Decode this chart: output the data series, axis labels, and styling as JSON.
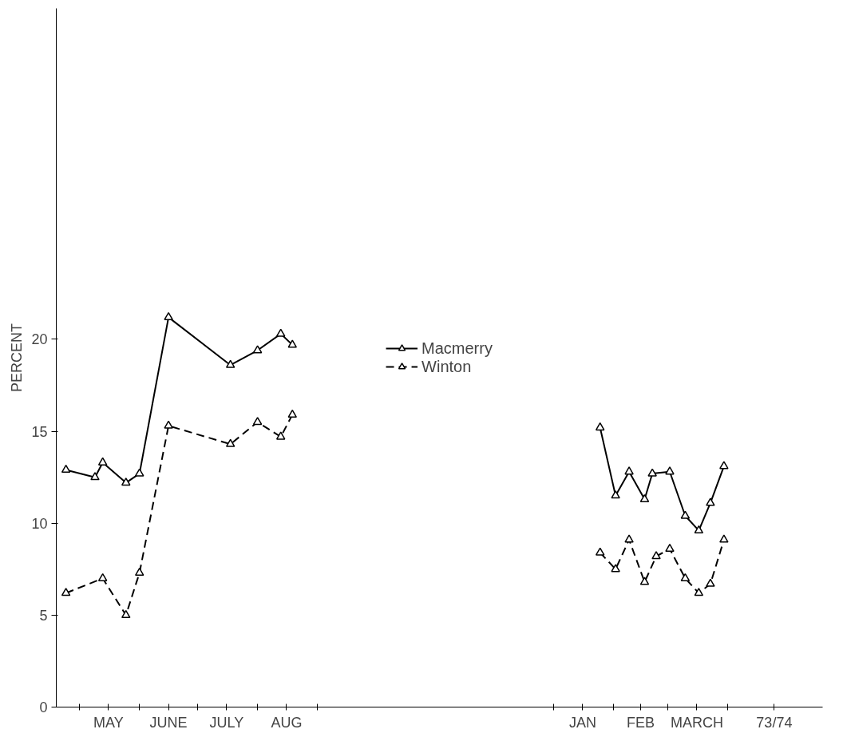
{
  "chart_data": {
    "type": "line",
    "ylabel": "PERCENT",
    "xlim": [
      "1973-04-19",
      "1974-05-20"
    ],
    "ylim": [
      0,
      38
    ],
    "yticks": [
      0,
      5,
      10,
      15,
      20
    ],
    "xticks": [
      {
        "value": "1973-05-01",
        "label": null
      },
      {
        "value": "1973-06-01",
        "label": null
      },
      {
        "value": "1973-07-01",
        "label": null
      },
      {
        "value": "1973-08-01",
        "label": null
      },
      {
        "value": "1973-09-01",
        "label": null
      },
      {
        "value": "1974-01-01",
        "label": null
      },
      {
        "value": "1974-02-01",
        "label": null
      },
      {
        "value": "1974-03-01",
        "label": null
      },
      {
        "value": "1974-04-01",
        "label": null
      },
      {
        "value": "1973-05-16",
        "label": "MAY"
      },
      {
        "value": "1973-06-16",
        "label": "JUNE"
      },
      {
        "value": "1973-07-16",
        "label": "JULY"
      },
      {
        "value": "1973-08-16",
        "label": "AUG"
      },
      {
        "value": "1974-01-16",
        "label": "JAN"
      },
      {
        "value": "1974-02-15",
        "label": "FEB"
      },
      {
        "value": "1974-03-16",
        "label": "MARCH"
      },
      {
        "value": "1974-04-25",
        "label": "73/74"
      }
    ],
    "grid": false,
    "legend": "center",
    "marker": "triangle",
    "series": [
      {
        "name": "Macmerry",
        "color": "#000000",
        "line_style": "solid",
        "x": [
          "1973-04-24",
          "1973-05-09",
          "1973-05-13",
          "1973-05-25",
          "1973-06-01",
          "1973-06-16",
          "1973-07-18",
          "1973-08-01",
          "1973-08-13",
          "1973-08-19",
          "1973-10-15",
          "1974-01-25",
          "1974-02-02",
          "1974-02-09",
          "1974-02-17",
          "1974-02-21",
          "1974-03-02",
          "1974-03-10",
          "1974-03-17",
          "1974-03-23",
          "1974-03-30"
        ],
        "values": [
          12.9,
          12.5,
          13.3,
          12.2,
          12.7,
          21.2,
          18.6,
          19.4,
          20.3,
          19.7,
          null,
          15.2,
          11.5,
          12.8,
          11.3,
          12.7,
          12.8,
          10.4,
          9.6,
          11.1,
          13.1
        ]
      },
      {
        "name": "Winton",
        "color": "#000000",
        "line_style": "dashed",
        "x": [
          "1973-04-24",
          "1973-05-13",
          "1973-05-25",
          "1973-06-01",
          "1973-06-16",
          "1973-07-18",
          "1973-08-01",
          "1973-08-13",
          "1973-08-19",
          "1973-10-15",
          "1974-01-25",
          "1974-02-02",
          "1974-02-09",
          "1974-02-17",
          "1974-02-23",
          "1974-03-02",
          "1974-03-10",
          "1974-03-17",
          "1974-03-23",
          "1974-03-30"
        ],
        "values": [
          6.2,
          7.0,
          5.0,
          7.3,
          15.3,
          14.3,
          15.5,
          14.7,
          15.9,
          null,
          8.4,
          7.5,
          9.1,
          6.8,
          8.2,
          8.6,
          7.0,
          6.2,
          6.7,
          9.1
        ]
      }
    ]
  }
}
